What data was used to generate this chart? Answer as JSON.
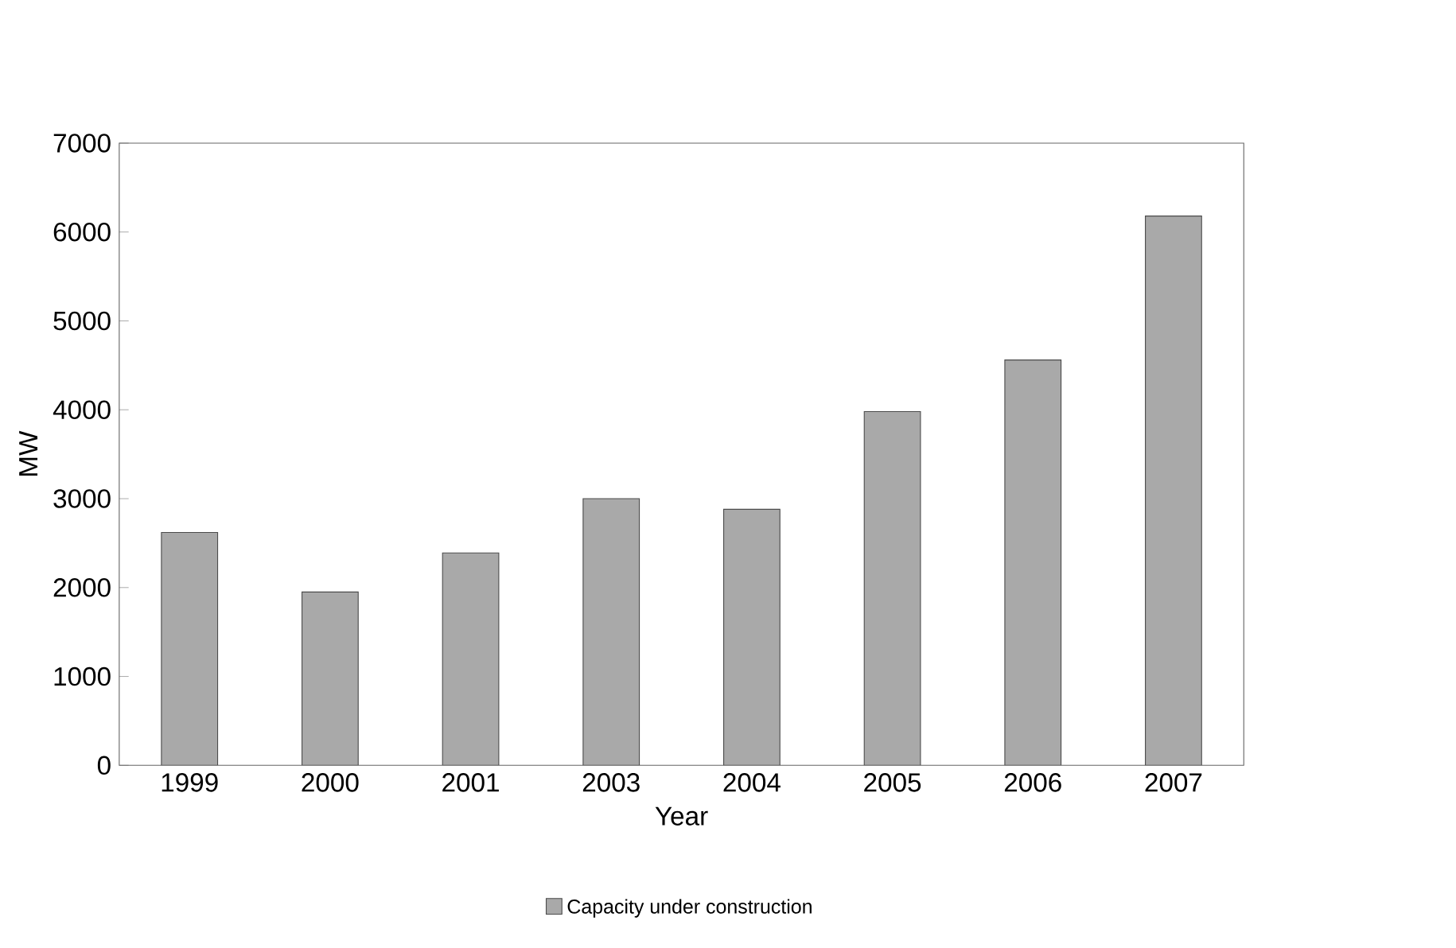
{
  "chart_data": {
    "type": "bar",
    "xlabel": "Year",
    "ylabel": "MW",
    "categories": [
      "1999",
      "2000",
      "2001",
      "2003",
      "2004",
      "2005",
      "2006",
      "2007"
    ],
    "series": [
      {
        "name": "Capacity under construction",
        "color": "#a9a9a9",
        "values": [
          2620,
          1950,
          2390,
          3000,
          2880,
          3980,
          4560,
          6180
        ]
      }
    ],
    "ylim": [
      0,
      7000
    ],
    "yticks": [
      0,
      1000,
      2000,
      3000,
      4000,
      5000,
      6000,
      7000
    ],
    "legend": "bottom"
  }
}
